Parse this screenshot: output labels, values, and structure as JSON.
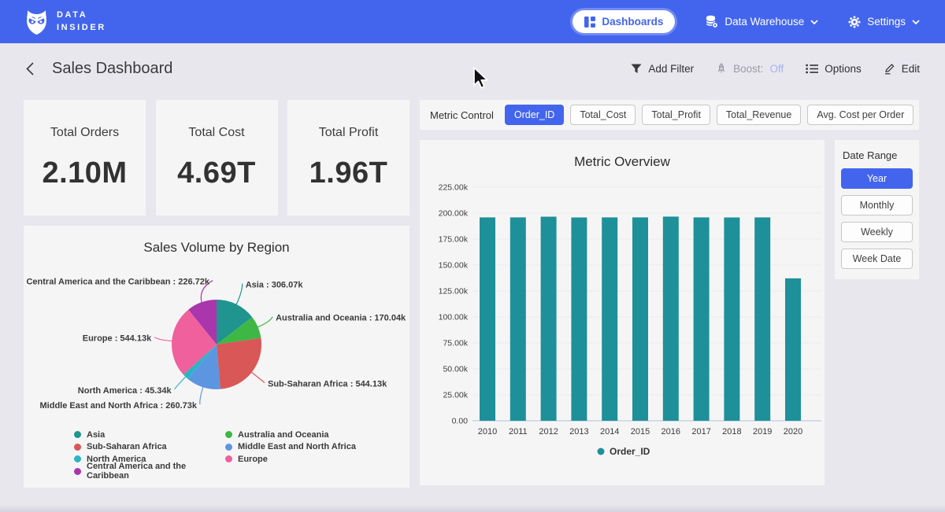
{
  "navbar": {
    "brand_line1": "DATA",
    "brand_line2": "INSIDER",
    "dashboards_label": "Dashboards",
    "data_warehouse_label": "Data Warehouse",
    "settings_label": "Settings"
  },
  "header": {
    "title": "Sales Dashboard",
    "add_filter_label": "Add Filter",
    "boost_label": "Boost:",
    "boost_state": "Off",
    "options_label": "Options",
    "edit_label": "Edit"
  },
  "kpis": [
    {
      "label": "Total Orders",
      "value": "2.10M"
    },
    {
      "label": "Total Cost",
      "value": "4.69T"
    },
    {
      "label": "Total Profit",
      "value": "1.96T"
    }
  ],
  "metric_control": {
    "label": "Metric Control",
    "options": [
      {
        "label": "Order_ID",
        "selected": true
      },
      {
        "label": "Total_Cost",
        "selected": false
      },
      {
        "label": "Total_Profit",
        "selected": false
      },
      {
        "label": "Total_Revenue",
        "selected": false
      },
      {
        "label": "Avg. Cost per Order",
        "selected": false
      }
    ]
  },
  "date_range": {
    "label": "Date Range",
    "options": [
      {
        "label": "Year",
        "selected": true
      },
      {
        "label": "Monthly",
        "selected": false
      },
      {
        "label": "Weekly",
        "selected": false
      },
      {
        "label": "Week Date",
        "selected": false
      }
    ]
  },
  "icons": {
    "brand": "owl-icon",
    "dashboards": "dashboard-grid-icon",
    "data_warehouse": "database-icon",
    "settings": "gear-icon",
    "add_filter": "funnel-icon",
    "boost": "rocket-icon",
    "options": "list-icon",
    "edit": "pencil-icon",
    "back": "chevron-left-icon"
  },
  "colors": {
    "navbar": "#4365ee",
    "accent": "#4365ee",
    "background": "#e8e7ee",
    "card": "#f6f5f6",
    "boost_off": "#a4b3ef"
  },
  "chart_data": [
    {
      "type": "pie",
      "title": "Sales Volume by Region",
      "unit": "k",
      "slices": [
        {
          "label": "Asia",
          "value": 306.07,
          "display": "306.07k",
          "color": "#20948e"
        },
        {
          "label": "Australia and Oceania",
          "value": 170.04,
          "display": "170.04k",
          "color": "#3eb744"
        },
        {
          "label": "Sub-Saharan Africa",
          "value": 544.13,
          "display": "544.13k",
          "color": "#d95757"
        },
        {
          "label": "Middle East and North Africa",
          "value": 260.73,
          "display": "260.73k",
          "color": "#5d96e0"
        },
        {
          "label": "North America",
          "value": 45.34,
          "display": "45.34k",
          "color": "#2ab5c4"
        },
        {
          "label": "Europe",
          "value": 544.13,
          "display": "544.13k",
          "color": "#f0609c"
        },
        {
          "label": "Central America and the Caribbean",
          "value": 226.72,
          "display": "226.72k",
          "color": "#aa36ad"
        }
      ],
      "legend_columns": [
        [
          "Asia",
          "Sub-Saharan Africa",
          "North America",
          "Central America and the Caribbean"
        ],
        [
          "Australia and Oceania",
          "Middle East and North Africa",
          "Europe"
        ]
      ],
      "legend_position": "bottom"
    },
    {
      "type": "bar",
      "title": "Metric Overview",
      "categories": [
        "2010",
        "2011",
        "2012",
        "2013",
        "2014",
        "2015",
        "2016",
        "2017",
        "2018",
        "2019",
        "2020"
      ],
      "series": [
        {
          "name": "Order_ID",
          "color": "#1e9099",
          "values": [
            195.9,
            195.9,
            196.6,
            195.8,
            195.9,
            195.9,
            196.7,
            195.9,
            195.8,
            195.9,
            137.2
          ]
        }
      ],
      "unit": "k",
      "ylim": [
        0,
        235
      ],
      "y_ticks": [
        "0.00",
        "25.00k",
        "50.00k",
        "75.00k",
        "100.00k",
        "125.00k",
        "150.00k",
        "175.00k",
        "200.00k",
        "225.00k"
      ],
      "grid": true,
      "legend_position": "bottom"
    }
  ]
}
